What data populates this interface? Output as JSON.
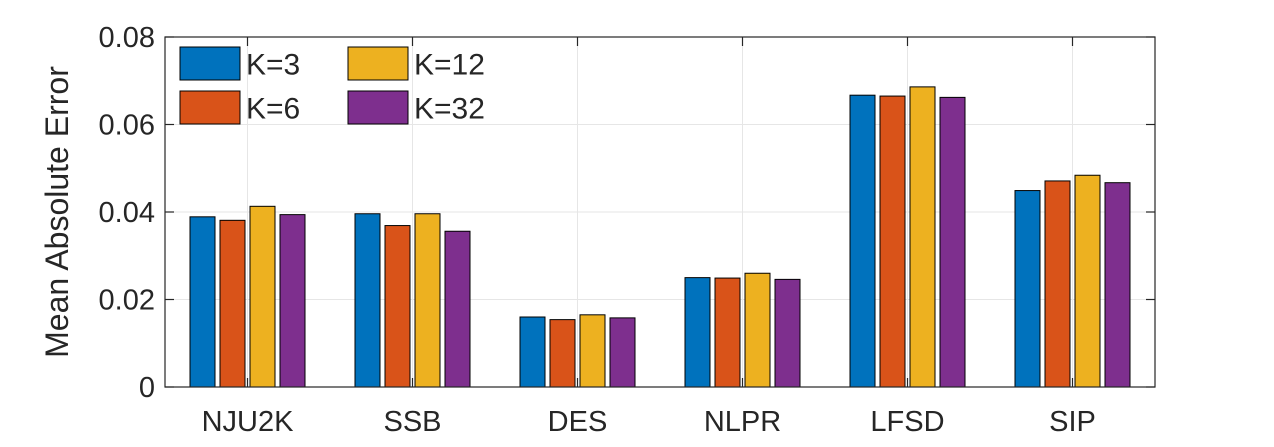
{
  "chart_data": {
    "type": "bar",
    "title": "",
    "xlabel": "",
    "ylabel": "Mean Absolute Error",
    "ylim": [
      0,
      0.08
    ],
    "yticks": [
      0,
      0.02,
      0.04,
      0.06,
      0.08
    ],
    "ytick_labels": [
      "0",
      "0.02",
      "0.04",
      "0.06",
      "0.08"
    ],
    "grid": true,
    "legend_position": "top-left",
    "categories": [
      "NJU2K",
      "SSB",
      "DES",
      "NLPR",
      "LFSD",
      "SIP"
    ],
    "series": [
      {
        "name": "K=3",
        "color": "#0072BD",
        "values": [
          0.0389,
          0.0396,
          0.016,
          0.025,
          0.0667,
          0.0449
        ]
      },
      {
        "name": "K=6",
        "color": "#D95319",
        "values": [
          0.0381,
          0.0369,
          0.0154,
          0.0249,
          0.0665,
          0.0471
        ]
      },
      {
        "name": "K=12",
        "color": "#EDB120",
        "values": [
          0.0413,
          0.0396,
          0.0165,
          0.026,
          0.0686,
          0.0484
        ]
      },
      {
        "name": "K=32",
        "color": "#7E2F8E",
        "values": [
          0.0394,
          0.0356,
          0.0158,
          0.0246,
          0.0662,
          0.0467
        ]
      }
    ]
  }
}
